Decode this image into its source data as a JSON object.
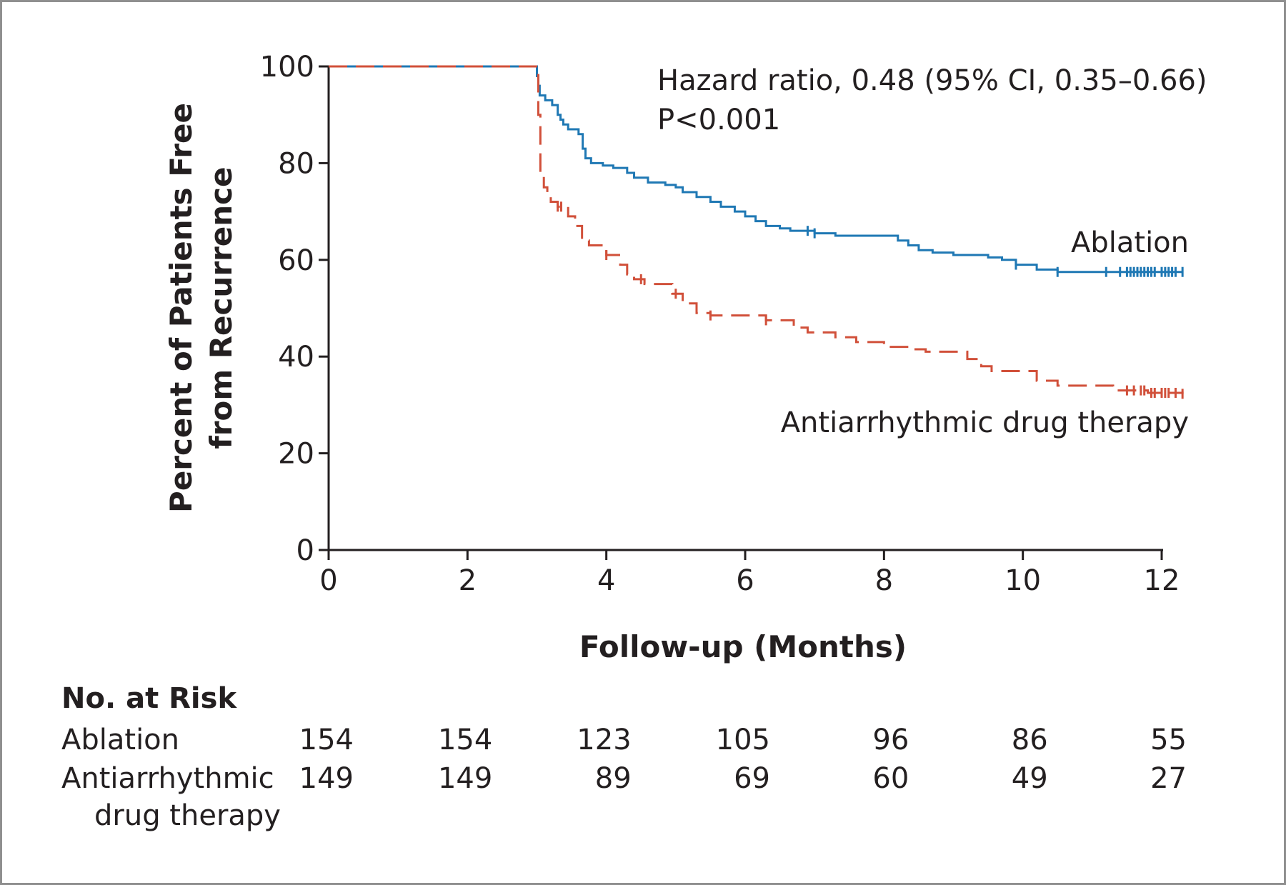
{
  "chart_data": {
    "type": "line",
    "subtype": "kaplan-meier",
    "xlabel": "Follow-up (Months)",
    "ylabel_line1": "Percent of Patients Free",
    "ylabel_line2": "from Recurrence",
    "xlim": [
      0,
      12
    ],
    "ylim": [
      0,
      100
    ],
    "xticks": [
      0,
      2,
      4,
      6,
      8,
      10,
      12
    ],
    "yticks": [
      0,
      20,
      40,
      60,
      80,
      100
    ],
    "annotation_line1": "Hazard ratio, 0.48 (95% CI, 0.35–0.66)",
    "annotation_line2": "P<0.001",
    "series": [
      {
        "name": "Ablation",
        "color": "#1f78b4",
        "dashed": false,
        "steps": [
          [
            0,
            100
          ],
          [
            2.98,
            100
          ],
          [
            3.0,
            98
          ],
          [
            3.02,
            96
          ],
          [
            3.04,
            94
          ],
          [
            3.12,
            93
          ],
          [
            3.22,
            92
          ],
          [
            3.3,
            90
          ],
          [
            3.34,
            89
          ],
          [
            3.38,
            88
          ],
          [
            3.45,
            87
          ],
          [
            3.6,
            86
          ],
          [
            3.66,
            83
          ],
          [
            3.7,
            81
          ],
          [
            3.78,
            80
          ],
          [
            3.95,
            79.5
          ],
          [
            4.1,
            79
          ],
          [
            4.3,
            78
          ],
          [
            4.4,
            77
          ],
          [
            4.6,
            76
          ],
          [
            4.85,
            75.5
          ],
          [
            5.0,
            75
          ],
          [
            5.1,
            74
          ],
          [
            5.3,
            73
          ],
          [
            5.5,
            72
          ],
          [
            5.65,
            71
          ],
          [
            5.85,
            70
          ],
          [
            6.0,
            69
          ],
          [
            6.15,
            68
          ],
          [
            6.3,
            67
          ],
          [
            6.5,
            66.5
          ],
          [
            6.65,
            66
          ],
          [
            7.0,
            65.5
          ],
          [
            7.3,
            65
          ],
          [
            8.2,
            64
          ],
          [
            8.35,
            63
          ],
          [
            8.5,
            62
          ],
          [
            8.7,
            61.5
          ],
          [
            9.0,
            61
          ],
          [
            9.5,
            60.5
          ],
          [
            9.7,
            60
          ],
          [
            9.9,
            59
          ],
          [
            10.2,
            58
          ],
          [
            10.5,
            57.5
          ],
          [
            12.3,
            57.5
          ]
        ],
        "censor_marks": [
          6.9,
          7.0,
          9.9,
          10.5,
          11.2,
          11.4,
          11.5,
          11.55,
          11.6,
          11.65,
          11.7,
          11.75,
          11.8,
          11.85,
          11.9,
          12.0,
          12.05,
          12.1,
          12.15,
          12.2,
          12.3
        ]
      },
      {
        "name": "Antiarrhythmic drug therapy",
        "color": "#d1503a",
        "dashed": true,
        "steps": [
          [
            0,
            100
          ],
          [
            3.0,
            100
          ],
          [
            3.02,
            90
          ],
          [
            3.05,
            78
          ],
          [
            3.1,
            75
          ],
          [
            3.15,
            73
          ],
          [
            3.2,
            72
          ],
          [
            3.3,
            71
          ],
          [
            3.45,
            69
          ],
          [
            3.55,
            67
          ],
          [
            3.65,
            64
          ],
          [
            3.75,
            63
          ],
          [
            4.0,
            61
          ],
          [
            4.2,
            59
          ],
          [
            4.3,
            57
          ],
          [
            4.4,
            56
          ],
          [
            4.55,
            55
          ],
          [
            4.95,
            53
          ],
          [
            5.1,
            51
          ],
          [
            5.3,
            49
          ],
          [
            5.5,
            48.5
          ],
          [
            6.3,
            47.5
          ],
          [
            6.7,
            46
          ],
          [
            6.9,
            45
          ],
          [
            7.3,
            44
          ],
          [
            7.6,
            43
          ],
          [
            8.0,
            42
          ],
          [
            8.4,
            41.5
          ],
          [
            8.6,
            41
          ],
          [
            9.2,
            39.5
          ],
          [
            9.4,
            38
          ],
          [
            9.55,
            37
          ],
          [
            10.2,
            35
          ],
          [
            10.5,
            34
          ],
          [
            11.3,
            33
          ],
          [
            11.8,
            32.5
          ],
          [
            12.3,
            32.3
          ]
        ],
        "censor_marks": [
          3.3,
          3.35,
          4.0,
          4.5,
          5.0,
          5.5,
          6.3,
          11.5,
          11.6,
          11.7,
          11.75,
          11.85,
          11.9,
          12.0,
          12.05,
          12.1,
          12.2,
          12.3
        ]
      }
    ]
  },
  "risk_table": {
    "title": "No. at Risk",
    "rows": [
      {
        "label_line1": "Ablation",
        "label_line2": "",
        "values": [
          "154",
          "154",
          "123",
          "105",
          "96",
          "86",
          "55"
        ]
      },
      {
        "label_line1": "Antiarrhythmic",
        "label_line2": "drug therapy",
        "values": [
          "149",
          "149",
          "89",
          "69",
          "60",
          "49",
          "27"
        ]
      }
    ]
  }
}
